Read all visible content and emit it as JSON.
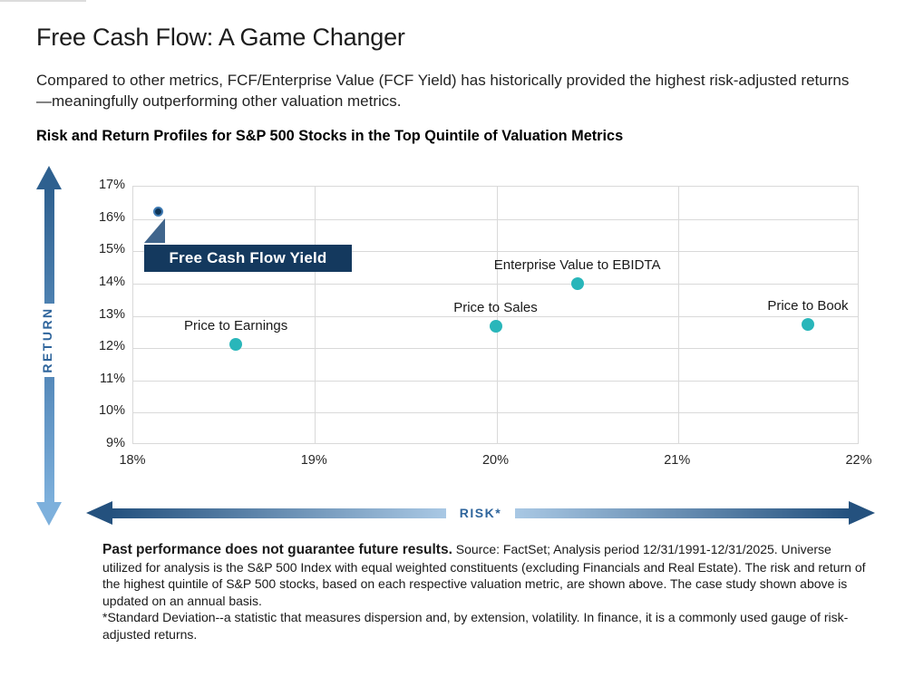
{
  "page": {
    "title": "Free Cash Flow: A Game Changer",
    "subtitle": "Compared to other metrics, FCF/Enterprise Value (FCF Yield) has historically provided the highest risk-adjusted returns—meaningfully outperforming other valuation metrics.",
    "chart_heading": "Risk and Return Profiles for S&P 500 Stocks in the Top Quintile of Valuation Metrics"
  },
  "chart_data": {
    "type": "scatter",
    "title": "Risk and Return Profiles for S&P 500 Stocks in the Top Quintile of Valuation Metrics",
    "xlabel": "RISK*",
    "ylabel": "RETURN",
    "xlim": [
      18,
      22
    ],
    "ylim": [
      9,
      17
    ],
    "x_ticks": [
      "18%",
      "19%",
      "20%",
      "21%",
      "22%"
    ],
    "y_ticks": [
      "17%",
      "16%",
      "15%",
      "14%",
      "13%",
      "12%",
      "11%",
      "10%",
      "9%"
    ],
    "grid": true,
    "legend": "none",
    "points": [
      {
        "label": "Free Cash Flow Yield",
        "x": 18.15,
        "y": 16.15,
        "highlight": true
      },
      {
        "label": "Price to Earnings",
        "x": 18.57,
        "y": 12.1,
        "highlight": false
      },
      {
        "label": "Price to Sales",
        "x": 20.0,
        "y": 12.65,
        "highlight": false
      },
      {
        "label": "Enterprise Value to EBIDTA",
        "x": 20.45,
        "y": 13.97,
        "highlight": false
      },
      {
        "label": "Price to Book",
        "x": 21.72,
        "y": 12.7,
        "highlight": false
      }
    ],
    "callout": {
      "label": "Free Cash Flow Yield"
    }
  },
  "footnote": {
    "bold": "Past performance does not guarantee future results.",
    "text": " Source: FactSet; Analysis period 12/31/1991-12/31/2025. Universe utilized for analysis is the S&P 500 Index with equal weighted constituents (excluding Financials and Real Estate). The risk and return of the highest quintile of S&P 500 stocks, based on each respective valuation metric, are shown above. The case study shown above is updated on an annual basis.",
    "asterisk": "*Standard Deviation--a statistic that measures dispersion and, by extension, volatility. In finance, it is a commonly used gauge of risk-adjusted returns."
  },
  "colors": {
    "teal_point": "#29b6ba",
    "navy_point": "#0f3456",
    "navy_point_ring": "#3e7ab3",
    "callout_bg": "#14395e",
    "callout_text": "#ffffff",
    "callout_pointer": "#40658c",
    "arrow_dark": "#24517e",
    "arrow_mid_dark": "#2e608f",
    "arrow_light": "#7db0dc",
    "arrow_pale": "#a9c8e4",
    "axis_label_blue": "#2f659c",
    "gridline": "#d9d9d9"
  }
}
